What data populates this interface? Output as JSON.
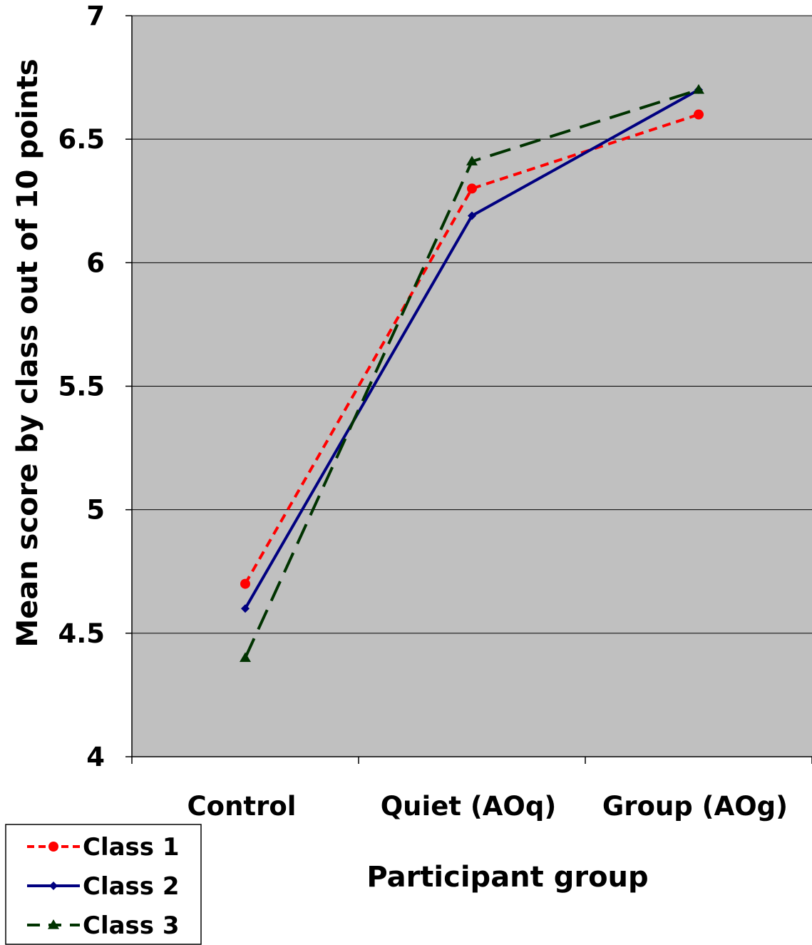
{
  "chart_data": {
    "type": "line",
    "categories": [
      "Control",
      "Quiet (AOq)",
      "Group (AOg)"
    ],
    "series": [
      {
        "name": "Class 1",
        "values": [
          4.7,
          6.3,
          6.6
        ],
        "color": "#ff0000",
        "marker": "circle",
        "dash": "short-dash"
      },
      {
        "name": "Class 2",
        "values": [
          4.6,
          6.19,
          6.7
        ],
        "color": "#000080",
        "marker": "diamond",
        "dash": "solid"
      },
      {
        "name": "Class 3",
        "values": [
          4.4,
          6.41,
          6.7
        ],
        "color": "#003300",
        "marker": "triangle",
        "dash": "long-dash"
      }
    ],
    "xlabel": "Participant group",
    "ylabel": "Mean score by class out of 10 points",
    "ylim": [
      4,
      7
    ],
    "yticks": [
      "4",
      "4.5",
      "5",
      "5.5",
      "6",
      "6.5",
      "7"
    ],
    "grid": true,
    "plot_background": "#c0c0c0",
    "legend_position": "bottom-left"
  }
}
